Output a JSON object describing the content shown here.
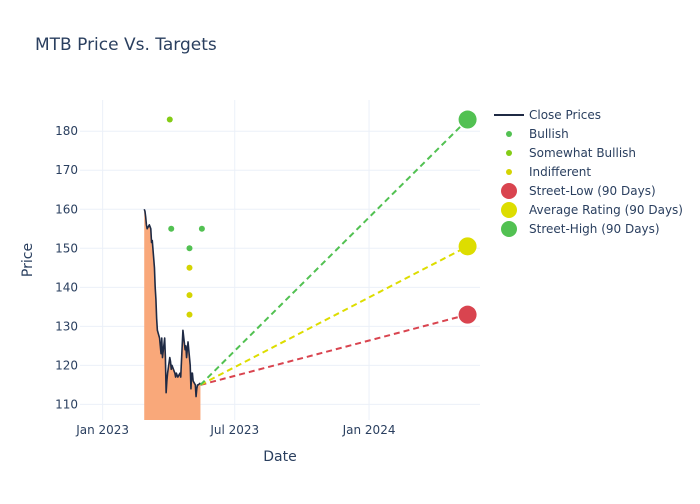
{
  "chart_data": {
    "type": "line",
    "title": "MTB Price Vs. Targets",
    "xlabel": "Date",
    "ylabel": "Price",
    "x_ticks": [
      {
        "date": "2023-01-01",
        "label": "Jan 2023"
      },
      {
        "date": "2023-07-01",
        "label": "Jul 2023"
      },
      {
        "date": "2024-01-01",
        "label": "Jan 2024"
      }
    ],
    "y_ticks": [
      110,
      120,
      130,
      140,
      150,
      160,
      170,
      180
    ],
    "xlim": [
      "2022-12-01",
      "2024-06-01"
    ],
    "ylim": [
      106,
      188
    ],
    "grid": true,
    "legend_position": "right",
    "colors": {
      "close": "#1f2a44",
      "fill": "#f9a87a",
      "bullish": "#52c152",
      "somewhat_bullish": "#84cc16",
      "indifferent": "#d4d402",
      "street_low": "#d9444f",
      "average": "#dddd00",
      "street_high": "#52c152"
    },
    "series": [
      {
        "name": "Close Prices",
        "kind": "line",
        "points": [
          [
            "2023-02-27",
            160
          ],
          [
            "2023-02-28",
            159.5
          ],
          [
            "2023-03-01",
            158
          ],
          [
            "2023-03-02",
            156
          ],
          [
            "2023-03-03",
            155
          ],
          [
            "2023-03-06",
            156
          ],
          [
            "2023-03-07",
            155.5
          ],
          [
            "2023-03-08",
            155
          ],
          [
            "2023-03-09",
            151.5
          ],
          [
            "2023-03-10",
            152
          ],
          [
            "2023-03-13",
            145
          ],
          [
            "2023-03-14",
            140
          ],
          [
            "2023-03-15",
            137
          ],
          [
            "2023-03-16",
            132
          ],
          [
            "2023-03-17",
            129
          ],
          [
            "2023-03-20",
            127
          ],
          [
            "2023-03-21",
            125
          ],
          [
            "2023-03-22",
            123
          ],
          [
            "2023-03-23",
            127
          ],
          [
            "2023-03-24",
            122
          ],
          [
            "2023-03-27",
            127
          ],
          [
            "2023-03-28",
            122
          ],
          [
            "2023-03-29",
            113
          ],
          [
            "2023-03-30",
            116
          ],
          [
            "2023-03-31",
            118
          ],
          [
            "2023-04-03",
            122
          ],
          [
            "2023-04-04",
            121
          ],
          [
            "2023-04-05",
            119
          ],
          [
            "2023-04-06",
            120
          ],
          [
            "2023-04-10",
            118
          ],
          [
            "2023-04-11",
            117
          ],
          [
            "2023-04-12",
            118
          ],
          [
            "2023-04-13",
            117.5
          ],
          [
            "2023-04-14",
            117
          ],
          [
            "2023-04-17",
            118
          ],
          [
            "2023-04-18",
            117
          ],
          [
            "2023-04-19",
            121
          ],
          [
            "2023-04-20",
            125
          ],
          [
            "2023-04-21",
            129
          ],
          [
            "2023-04-24",
            124
          ],
          [
            "2023-04-25",
            125
          ],
          [
            "2023-04-26",
            122
          ],
          [
            "2023-04-27",
            124
          ],
          [
            "2023-04-28",
            126
          ],
          [
            "2023-05-01",
            120
          ],
          [
            "2023-05-02",
            114
          ],
          [
            "2023-05-03",
            118
          ],
          [
            "2023-05-04",
            118
          ],
          [
            "2023-05-05",
            116
          ],
          [
            "2023-05-08",
            115
          ],
          [
            "2023-05-09",
            112
          ],
          [
            "2023-05-10",
            114
          ],
          [
            "2023-05-11",
            115
          ],
          [
            "2023-05-12",
            115
          ],
          [
            "2023-05-15",
            115.5
          ]
        ]
      },
      {
        "name": "Bullish",
        "kind": "marker",
        "points": [
          [
            "2023-04-05",
            155
          ],
          [
            "2023-04-30",
            150
          ],
          [
            "2023-05-17",
            155
          ]
        ]
      },
      {
        "name": "Somewhat Bullish",
        "kind": "marker",
        "points": [
          [
            "2023-04-03",
            183
          ]
        ]
      },
      {
        "name": "Indifferent",
        "kind": "marker",
        "points": [
          [
            "2023-04-30",
            145
          ],
          [
            "2023-04-30",
            138
          ],
          [
            "2023-04-30",
            133
          ]
        ]
      },
      {
        "name": "Street-Low (90 Days)",
        "kind": "target",
        "start": [
          "2023-05-15",
          115
        ],
        "end": [
          "2024-05-15",
          133
        ]
      },
      {
        "name": "Average Rating (90 Days)",
        "kind": "target",
        "start": [
          "2023-05-15",
          115
        ],
        "end": [
          "2024-05-15",
          150.5
        ]
      },
      {
        "name": "Street-High (90 Days)",
        "kind": "target",
        "start": [
          "2023-05-15",
          115
        ],
        "end": [
          "2024-05-15",
          183
        ]
      }
    ],
    "legend": [
      {
        "label": "Close Prices",
        "symbol": "line",
        "color_key": "close"
      },
      {
        "label": "Bullish",
        "symbol": "small-dot",
        "color_key": "bullish"
      },
      {
        "label": "Somewhat Bullish",
        "symbol": "small-dot",
        "color_key": "somewhat_bullish"
      },
      {
        "label": "Indifferent",
        "symbol": "small-dot",
        "color_key": "indifferent"
      },
      {
        "label": "Street-Low (90 Days)",
        "symbol": "big-dot",
        "color_key": "street_low"
      },
      {
        "label": "Average Rating (90 Days)",
        "symbol": "big-dot",
        "color_key": "average"
      },
      {
        "label": "Street-High (90 Days)",
        "symbol": "big-dot",
        "color_key": "street_high"
      }
    ]
  }
}
